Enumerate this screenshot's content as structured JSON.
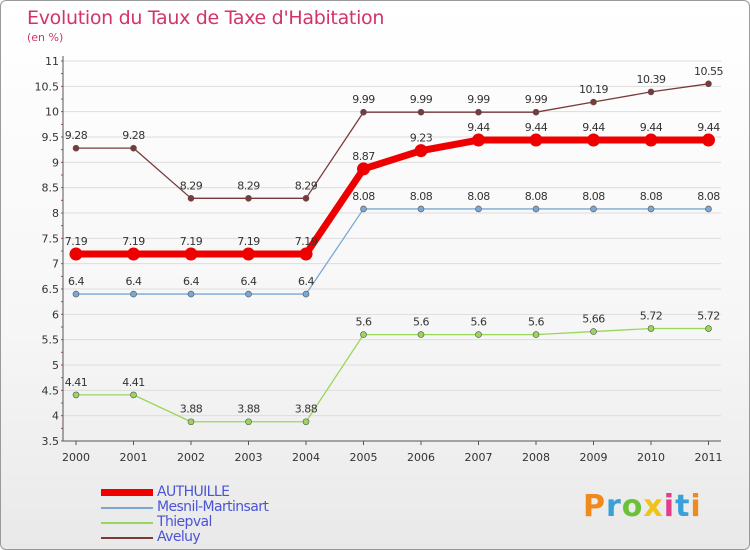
{
  "title": "Evolution du Taux de Taxe d'Habitation",
  "subtitle": "(en %)",
  "logo": "Proxiti",
  "chart_data": {
    "type": "line",
    "x": [
      "2000",
      "2001",
      "2002",
      "2003",
      "2004",
      "2005",
      "2006",
      "2007",
      "2008",
      "2009",
      "2010",
      "2011"
    ],
    "ylim": [
      3.5,
      11
    ],
    "yticks": [
      "3.5",
      "4",
      "4.5",
      "5",
      "5.5",
      "6",
      "6.5",
      "7",
      "7.5",
      "8",
      "8.5",
      "9",
      "9.5",
      "10",
      "10.5",
      "11"
    ],
    "grid": "horizontal",
    "legend_position": "bottom-left",
    "series": [
      {
        "name": "AUTHUILLE",
        "color": "#ee0000",
        "values": [
          7.19,
          7.19,
          7.19,
          7.19,
          7.19,
          8.87,
          9.23,
          9.44,
          9.44,
          9.44,
          9.44,
          9.44
        ],
        "labels": [
          "7.19",
          "7.19",
          "7.19",
          "7.19",
          "7.19",
          "8.87",
          "9.23",
          "9.44",
          "9.44",
          "9.44",
          "9.44",
          "9.44"
        ]
      },
      {
        "name": "Mesnil-Martinsart",
        "color": "#7aa7d3",
        "values": [
          6.4,
          6.4,
          6.4,
          6.4,
          6.4,
          8.08,
          8.08,
          8.08,
          8.08,
          8.08,
          8.08,
          8.08
        ],
        "labels": [
          "6.4",
          "6.4",
          "6.4",
          "6.4",
          "6.4",
          "8.08",
          "8.08",
          "8.08",
          "8.08",
          "8.08",
          "8.08",
          "8.08"
        ]
      },
      {
        "name": "Thiepval",
        "color": "#9ad65c",
        "values": [
          4.41,
          4.41,
          3.88,
          3.88,
          3.88,
          5.6,
          5.6,
          5.6,
          5.6,
          5.66,
          5.72,
          5.72
        ],
        "labels": [
          "4.41",
          "4.41",
          "3.88",
          "3.88",
          "3.88",
          "5.6",
          "5.6",
          "5.6",
          "5.6",
          "5.66",
          "5.72",
          "5.72"
        ]
      },
      {
        "name": "Aveluy",
        "color": "#7a3a3a",
        "values": [
          9.28,
          9.28,
          8.29,
          8.29,
          8.29,
          9.99,
          9.99,
          9.99,
          9.99,
          10.19,
          10.39,
          10.55
        ],
        "labels": [
          "9.28",
          "9.28",
          "8.29",
          "8.29",
          "8.29",
          "9.99",
          "9.99",
          "9.99",
          "9.99",
          "10.19",
          "10.39",
          "10.55"
        ]
      }
    ]
  }
}
